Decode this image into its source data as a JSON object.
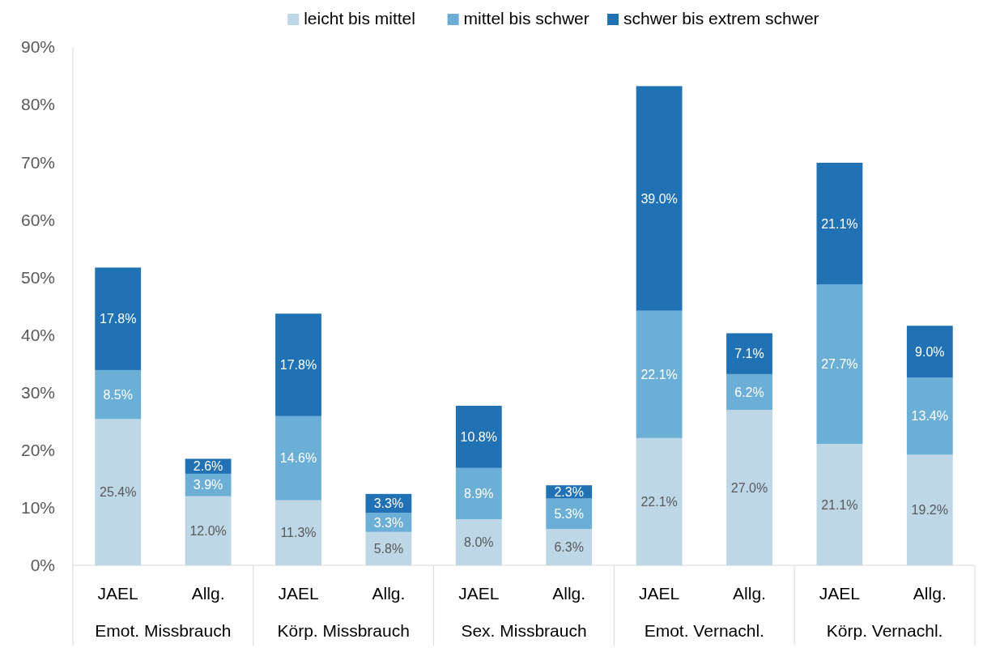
{
  "chart_data": {
    "type": "bar",
    "stacked": true,
    "categories": [
      "JAEL",
      "Allg.",
      "JAEL",
      "Allg.",
      "JAEL",
      "Allg.",
      "JAEL",
      "Allg.",
      "JAEL",
      "Allg."
    ],
    "series": [
      {
        "name": "leicht bis mittel",
        "color": "#bdd7e7",
        "values": [
          25.4,
          12.0,
          11.3,
          5.8,
          8.0,
          6.3,
          22.1,
          27.0,
          21.1,
          19.2
        ],
        "value_labels": [
          "25.4%",
          "12.0%",
          "11.3%",
          "5.8%",
          "8.0%",
          "6.3%",
          "22.1%",
          "27.0%",
          "21.1%",
          "19.2%"
        ]
      },
      {
        "name": "mittel bis schwer",
        "color": "#6baed6",
        "values": [
          8.5,
          3.9,
          14.6,
          3.3,
          8.9,
          5.3,
          22.1,
          6.2,
          27.7,
          13.4
        ],
        "value_labels": [
          "8.5%",
          "3.9%",
          "14.6%",
          "3.3%",
          "8.9%",
          "5.3%",
          "22.1%",
          "6.2%",
          "27.7%",
          "13.4%"
        ]
      },
      {
        "name": "schwer bis extrem schwer",
        "color": "#2171b5",
        "values": [
          17.8,
          2.6,
          17.8,
          3.3,
          10.8,
          2.3,
          39.0,
          7.1,
          21.1,
          9.0
        ],
        "value_labels": [
          "17.8%",
          "2.6%",
          "17.8%",
          "3.3%",
          "10.8%",
          "2.3%",
          "39.0%",
          "7.1%",
          "21.1%",
          "9.0%"
        ]
      }
    ],
    "ylim": [
      0,
      90
    ],
    "yticks": [
      {
        "value": 0,
        "label": "0%"
      },
      {
        "value": 10,
        "label": "10%"
      },
      {
        "value": 20,
        "label": "20%"
      },
      {
        "value": 30,
        "label": "30%"
      },
      {
        "value": 40,
        "label": "40%"
      },
      {
        "value": 50,
        "label": "50%"
      },
      {
        "value": 60,
        "label": "60%"
      },
      {
        "value": 70,
        "label": "70%"
      },
      {
        "value": 80,
        "label": "80%"
      },
      {
        "value": 90,
        "label": "90%"
      }
    ],
    "annotations": [
      "Emot. Missbrauch",
      "Körp. Missbrauch",
      "Sex. Missbrauch",
      "Emot. Vernachl.",
      "Körp. Vernachl."
    ],
    "legend": "top",
    "grid": false
  }
}
